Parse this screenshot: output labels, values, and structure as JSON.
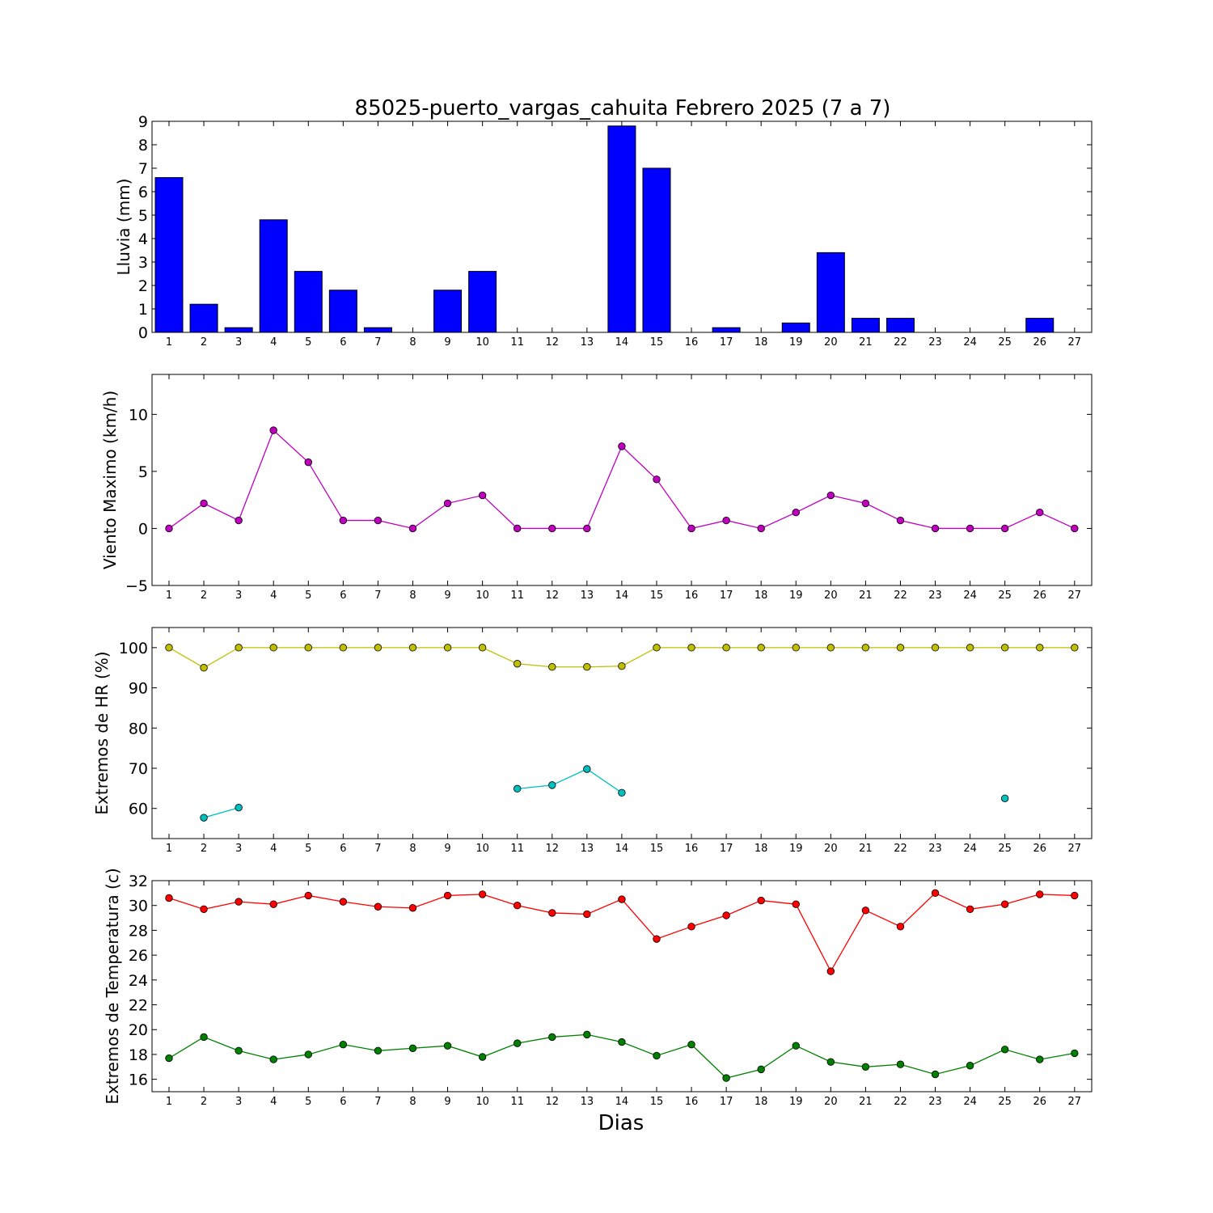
{
  "title": "85025-puerto_vargas_cahuita Febrero 2025  (7 a 7)",
  "xlabel": "Dias",
  "chart_data": [
    {
      "type": "bar",
      "ylabel": "Lluvia (mm)",
      "ylim": [
        0,
        9
      ],
      "yticks": [
        0,
        1,
        2,
        3,
        4,
        5,
        6,
        7,
        8,
        9
      ],
      "categories": [
        1,
        2,
        3,
        4,
        5,
        6,
        7,
        8,
        9,
        10,
        11,
        12,
        13,
        14,
        15,
        16,
        17,
        18,
        19,
        20,
        21,
        22,
        23,
        24,
        25,
        26,
        27
      ],
      "series": [
        {
          "color": "#0000ff",
          "values": [
            6.6,
            1.2,
            0.2,
            4.8,
            2.6,
            1.8,
            0.2,
            0,
            1.8,
            2.6,
            0,
            0,
            0,
            8.8,
            7.0,
            0,
            0.2,
            0,
            0.4,
            3.4,
            0.6,
            0.6,
            0,
            0,
            0,
            0.6,
            0
          ]
        }
      ]
    },
    {
      "type": "line",
      "ylabel": "Viento Maximo (km/h)",
      "ylim": [
        -5,
        13.5
      ],
      "yticks": [
        -5,
        0,
        5,
        10
      ],
      "categories": [
        1,
        2,
        3,
        4,
        5,
        6,
        7,
        8,
        9,
        10,
        11,
        12,
        13,
        14,
        15,
        16,
        17,
        18,
        19,
        20,
        21,
        22,
        23,
        24,
        25,
        26,
        27
      ],
      "series": [
        {
          "color": "#bf00bf",
          "values": [
            0,
            2.2,
            0.7,
            8.6,
            5.8,
            0.7,
            0.7,
            0,
            2.2,
            2.9,
            0,
            0,
            0,
            7.2,
            4.3,
            0,
            0.7,
            0,
            1.4,
            2.9,
            2.2,
            0.7,
            0,
            0,
            0,
            1.4,
            0
          ]
        }
      ]
    },
    {
      "type": "line",
      "ylabel": "Extremos de HR (%)",
      "ylim": [
        52.5,
        105
      ],
      "yticks": [
        60,
        70,
        80,
        90,
        100
      ],
      "categories": [
        1,
        2,
        3,
        4,
        5,
        6,
        7,
        8,
        9,
        10,
        11,
        12,
        13,
        14,
        15,
        16,
        17,
        18,
        19,
        20,
        21,
        22,
        23,
        24,
        25,
        26,
        27
      ],
      "series": [
        {
          "color": "#bfbf00",
          "values": [
            100,
            95,
            100,
            100,
            100,
            100,
            100,
            100,
            100,
            100,
            96,
            95.2,
            95.2,
            95.4,
            100,
            100,
            100,
            100,
            100,
            100,
            100,
            100,
            100,
            100,
            100,
            100,
            100
          ]
        },
        {
          "color": "#00bfbf",
          "values": [
            null,
            57.7,
            60.2,
            null,
            null,
            null,
            null,
            null,
            null,
            null,
            64.9,
            65.8,
            69.8,
            63.9,
            null,
            null,
            null,
            null,
            null,
            null,
            null,
            null,
            null,
            null,
            62.5,
            null,
            null
          ]
        }
      ]
    },
    {
      "type": "line",
      "ylabel": "Extremos de Temperatura (c)",
      "ylim": [
        15,
        32
      ],
      "yticks": [
        16,
        18,
        20,
        22,
        24,
        26,
        28,
        30,
        32
      ],
      "categories": [
        1,
        2,
        3,
        4,
        5,
        6,
        7,
        8,
        9,
        10,
        11,
        12,
        13,
        14,
        15,
        16,
        17,
        18,
        19,
        20,
        21,
        22,
        23,
        24,
        25,
        26,
        27
      ],
      "series": [
        {
          "color": "#ff0000",
          "values": [
            30.6,
            29.7,
            30.3,
            30.1,
            30.8,
            30.3,
            29.9,
            29.8,
            30.8,
            30.9,
            30.0,
            29.4,
            29.3,
            30.5,
            27.3,
            28.3,
            29.2,
            30.4,
            30.1,
            24.7,
            29.6,
            28.3,
            31.0,
            29.7,
            30.1,
            30.9,
            30.8
          ]
        },
        {
          "color": "#008000",
          "values": [
            17.7,
            19.4,
            18.3,
            17.6,
            18.0,
            18.8,
            18.3,
            18.5,
            18.7,
            17.8,
            18.9,
            19.4,
            19.6,
            19.0,
            17.9,
            18.8,
            16.1,
            16.8,
            18.7,
            17.4,
            17.0,
            17.2,
            16.4,
            17.1,
            18.4,
            17.6,
            18.1
          ]
        }
      ]
    }
  ]
}
